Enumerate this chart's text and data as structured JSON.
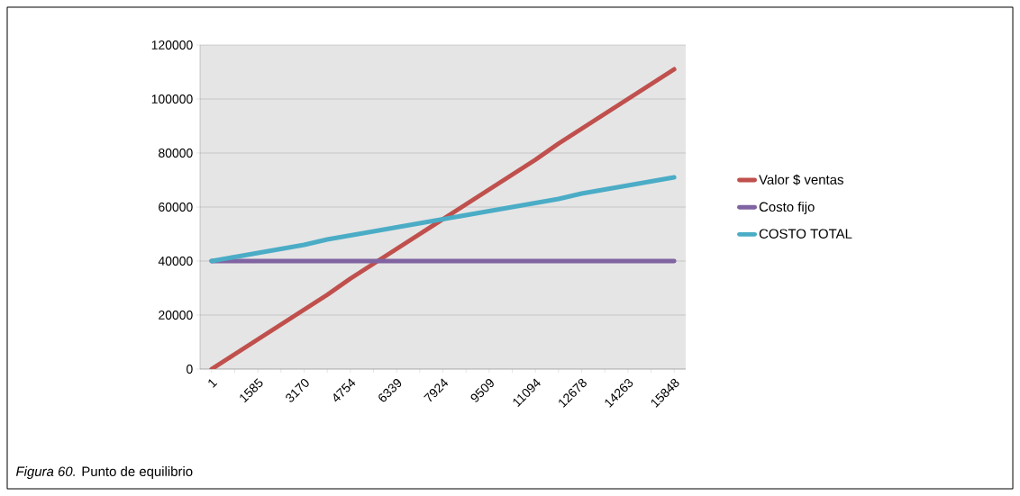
{
  "chart_data": {
    "type": "line",
    "categories": [
      "1",
      null,
      "1585",
      null,
      "3170",
      null,
      "4754",
      null,
      "6339",
      null,
      "7924",
      null,
      "9509",
      null,
      "11094",
      null,
      "12678",
      null,
      "14263",
      null,
      "15848"
    ],
    "series": [
      {
        "name": "Valor $ ventas",
        "color": "#c0504d",
        "values": [
          0,
          5500,
          11000,
          16500,
          22000,
          27500,
          33500,
          39000,
          44500,
          50000,
          55500,
          61000,
          66500,
          72000,
          77500,
          83500,
          89000,
          94500,
          100000,
          105500,
          111000
        ]
      },
      {
        "name": "Costo fijo",
        "color": "#8064a2",
        "values": [
          40000,
          40000,
          40000,
          40000,
          40000,
          40000,
          40000,
          40000,
          40000,
          40000,
          40000,
          40000,
          40000,
          40000,
          40000,
          40000,
          40000,
          40000,
          40000,
          40000,
          40000
        ]
      },
      {
        "name": "COSTO TOTAL",
        "color": "#4bacc6",
        "values": [
          40000,
          41500,
          43000,
          44500,
          46000,
          48000,
          49500,
          51000,
          52500,
          54000,
          55500,
          57000,
          58500,
          60000,
          61500,
          63000,
          65000,
          66500,
          68000,
          69500,
          71000
        ]
      }
    ],
    "ylim": [
      0,
      120000
    ],
    "yticks": [
      0,
      20000,
      40000,
      60000,
      80000,
      100000,
      120000
    ],
    "grid": "y",
    "legend": "right",
    "marker": "none",
    "line_style": "solid",
    "annotations": [
      "*Figura 60.*  Punto de equilibrio"
    ]
  }
}
